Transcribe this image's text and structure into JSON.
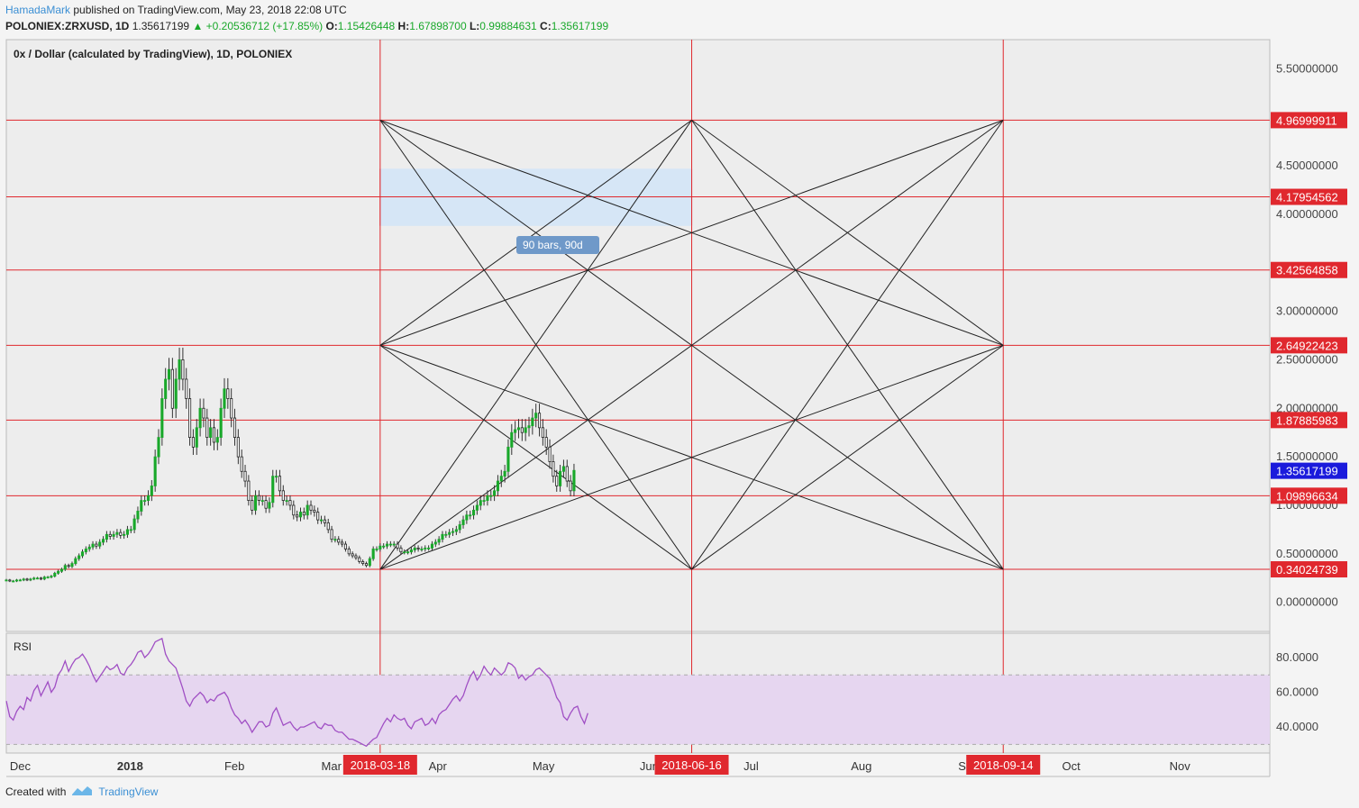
{
  "header": {
    "author": "HamadaMark",
    "published_text": "published on TradingView.com, May 23, 2018 22:08 UTC",
    "symbol": "POLONIEX:ZRXUSD, 1D",
    "last": "1.35617199",
    "change": "▲ +0.20536712 (+17.85%)",
    "o_label": "O:",
    "o_value": "1.15426448",
    "h_label": "H:",
    "h_value": "1.67898700",
    "l_label": "L:",
    "l_value": "0.99884631",
    "c_label": "C:",
    "c_value": "1.35617199"
  },
  "footer": {
    "created_with": "Created with",
    "brand": "TradingView"
  },
  "colors": {
    "up": "#19a82a",
    "down": "#222222",
    "red_line": "#e0282e",
    "price_badge": "#1b1bdc",
    "rsi_line": "#a04fc4",
    "rsi_band": "#e6d6f0",
    "pane_bg": "#ededed",
    "link": "#3b8fd4"
  },
  "chart_data": [
    {
      "type": "candlestick",
      "title": "0x / Dollar (calculated by TradingView), 1D, POLONIEX",
      "y_axis_ticks": [
        "5.50000000",
        "4.50000000",
        "4.00000000",
        "3.00000000",
        "2.50000000",
        "2.00000000",
        "1.50000000",
        "1.00000000",
        "0.50000000",
        "0.00000000"
      ],
      "ylim": [
        -0.3,
        5.8
      ],
      "x_axis_ticks": [
        "Dec",
        "2018",
        "Feb",
        "Mar",
        "Apr",
        "May",
        "Jun",
        "Jul",
        "Aug",
        "Sep",
        "Oct",
        "Nov"
      ],
      "x_range": [
        "2017-11-30",
        "2018-11-30"
      ],
      "series": [
        {
          "name": "",
          "description": "approximate daily closes read from the chart",
          "start_date": "2017-11-30",
          "close": [
            0.23,
            0.22,
            0.22,
            0.23,
            0.23,
            0.24,
            0.23,
            0.24,
            0.25,
            0.25,
            0.24,
            0.26,
            0.26,
            0.27,
            0.3,
            0.32,
            0.34,
            0.38,
            0.37,
            0.4,
            0.45,
            0.48,
            0.52,
            0.55,
            0.57,
            0.6,
            0.58,
            0.62,
            0.65,
            0.7,
            0.68,
            0.7,
            0.72,
            0.69,
            0.7,
            0.75,
            0.75,
            0.86,
            0.94,
            1.05,
            1.05,
            1.1,
            1.2,
            1.5,
            1.7,
            2.1,
            2.3,
            2.4,
            2.0,
            2.3,
            2.5,
            2.3,
            2.1,
            1.7,
            1.6,
            1.8,
            2.0,
            1.9,
            1.7,
            1.8,
            1.65,
            1.7,
            2.0,
            2.2,
            2.1,
            1.9,
            1.7,
            1.5,
            1.35,
            1.25,
            1.05,
            0.95,
            1.1,
            1.05,
            1.05,
            0.97,
            1.03,
            1.3,
            1.3,
            1.15,
            1.05,
            1.05,
            1.0,
            0.9,
            0.88,
            0.93,
            0.9,
            1.0,
            0.95,
            0.93,
            0.85,
            0.85,
            0.82,
            0.75,
            0.65,
            0.65,
            0.62,
            0.6,
            0.55,
            0.5,
            0.48,
            0.46,
            0.42,
            0.4,
            0.38,
            0.45,
            0.55,
            0.55,
            0.58,
            0.58,
            0.6,
            0.6,
            0.6,
            0.56,
            0.52,
            0.52,
            0.52,
            0.54,
            0.56,
            0.55,
            0.55,
            0.56,
            0.56,
            0.6,
            0.62,
            0.65,
            0.7,
            0.7,
            0.72,
            0.73,
            0.75,
            0.8,
            0.85,
            0.9,
            0.9,
            0.95,
            1.0,
            1.05,
            1.05,
            1.1,
            1.1,
            1.15,
            1.25,
            1.3,
            1.35,
            1.6,
            1.75,
            1.78,
            1.8,
            1.75,
            1.8,
            1.82,
            1.9,
            1.95,
            1.8,
            1.7,
            1.6,
            1.45,
            1.3,
            1.2,
            1.35,
            1.4,
            1.25,
            1.15,
            1.36
          ]
        }
      ],
      "horizontal_levels": [
        "4.96999911",
        "4.17954562",
        "3.42564858",
        "2.64922423",
        "1.87885983",
        "1.09896634",
        "0.34024739"
      ],
      "current_price": "1.35617199",
      "vertical_lines": [
        "2018-03-18",
        "2018-06-16",
        "2018-09-14"
      ],
      "measure_label": "90 bars, 90d",
      "gann_box": {
        "time": [
          "2018-03-18",
          "2018-06-16",
          "2018-09-14"
        ],
        "price": [
          0.34024739,
          2.64922423,
          4.96999911
        ]
      }
    },
    {
      "type": "line",
      "title": "RSI",
      "y_axis_ticks": [
        "80.0000",
        "60.0000",
        "40.0000"
      ],
      "ylim": [
        25,
        94
      ],
      "band": [
        30,
        70
      ],
      "series": [
        {
          "name": "",
          "start_date": "2017-11-30",
          "values": [
            55,
            46,
            44,
            49,
            52,
            50,
            57,
            55,
            61,
            64,
            58,
            62,
            66,
            60,
            63,
            70,
            73,
            78,
            72,
            76,
            79,
            80,
            82,
            79,
            75,
            70,
            66,
            69,
            72,
            75,
            73,
            74,
            76,
            71,
            70,
            74,
            76,
            79,
            83,
            84,
            80,
            82,
            85,
            89,
            90,
            91,
            82,
            78,
            76,
            74,
            68,
            62,
            55,
            52,
            56,
            58,
            60,
            58,
            54,
            56,
            55,
            58,
            59,
            60,
            57,
            51,
            47,
            45,
            42,
            44,
            41,
            37,
            40,
            43,
            43,
            40,
            41,
            48,
            51,
            46,
            41,
            42,
            43,
            40,
            38,
            40,
            40,
            41,
            42,
            43,
            40,
            39,
            42,
            41,
            41,
            38,
            37,
            37,
            35,
            33,
            33,
            32,
            31,
            30,
            29,
            31,
            33,
            34,
            38,
            42,
            45,
            43,
            47,
            45,
            44,
            45,
            41,
            39,
            43,
            44,
            45,
            41,
            42,
            45,
            42,
            47,
            49,
            50,
            53,
            56,
            58,
            55,
            58,
            64,
            69,
            72,
            67,
            70,
            75,
            72,
            70,
            74,
            72,
            70,
            72,
            77,
            76,
            74,
            68,
            70,
            67,
            69,
            70,
            73,
            74,
            72,
            70,
            68,
            63,
            57,
            54,
            46,
            44,
            48,
            51,
            52,
            46,
            42,
            48
          ]
        }
      ]
    }
  ],
  "x_badges": [
    "2018-03-18",
    "2018-06-16",
    "2018-09-14"
  ]
}
